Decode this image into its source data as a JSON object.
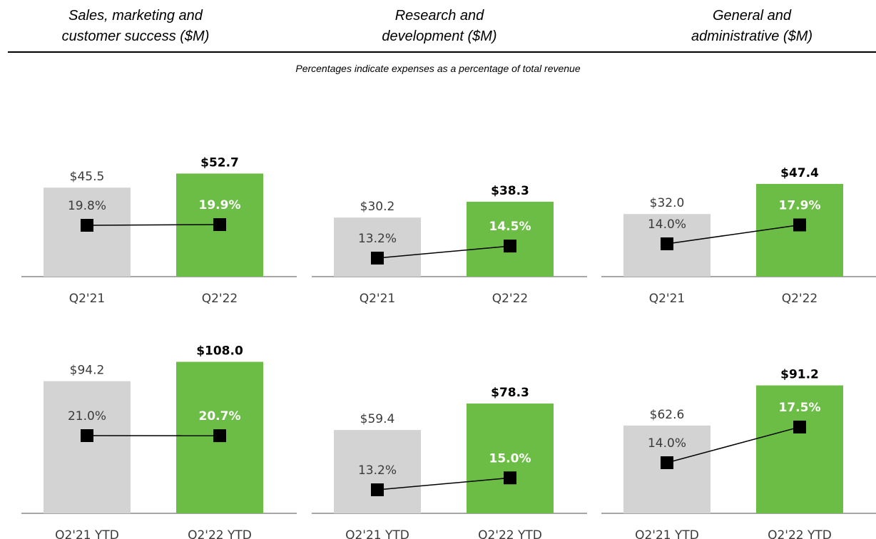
{
  "header": {
    "columns": [
      {
        "line1": "Sales, marketing and",
        "line2": "customer success ($M)"
      },
      {
        "line1": "Research and",
        "line2": "development ($M)"
      },
      {
        "line1": "General and",
        "line2": "administrative ($M)"
      }
    ],
    "note": "Percentages indicate expenses as a percentage of total revenue"
  },
  "colors": {
    "prior": "#d3d3d3",
    "current": "#6cbd45",
    "marker": "#000000",
    "axis": "#a6a6a6"
  },
  "chart_data": [
    {
      "type": "bar",
      "group": "Sales, marketing and customer success ($M)",
      "period": "quarter",
      "categories": [
        "Q2'21",
        "Q2'22"
      ],
      "values": [
        45.5,
        52.7
      ],
      "value_labels": [
        "$45.5",
        "$52.7"
      ],
      "pct": [
        19.8,
        19.9
      ],
      "pct_labels": [
        "19.8%",
        "19.9%"
      ]
    },
    {
      "type": "bar",
      "group": "Research and development ($M)",
      "period": "quarter",
      "categories": [
        "Q2'21",
        "Q2'22"
      ],
      "values": [
        30.2,
        38.3
      ],
      "value_labels": [
        "$30.2",
        "$38.3"
      ],
      "pct": [
        13.2,
        14.5
      ],
      "pct_labels": [
        "13.2%",
        "14.5%"
      ]
    },
    {
      "type": "bar",
      "group": "General and administrative ($M)",
      "period": "quarter",
      "categories": [
        "Q2'21",
        "Q2'22"
      ],
      "values": [
        32.0,
        47.4
      ],
      "value_labels": [
        "$32.0",
        "$47.4"
      ],
      "pct": [
        14.0,
        17.9
      ],
      "pct_labels": [
        "14.0%",
        "17.9%"
      ]
    },
    {
      "type": "bar",
      "group": "Sales, marketing and customer success ($M)",
      "period": "ytd",
      "categories": [
        "Q2'21 YTD",
        "Q2'22 YTD"
      ],
      "values": [
        94.2,
        108.0
      ],
      "value_labels": [
        "$94.2",
        "$108.0"
      ],
      "pct": [
        21.0,
        20.7
      ],
      "pct_labels": [
        "21.0%",
        "20.7%"
      ]
    },
    {
      "type": "bar",
      "group": "Research and development ($M)",
      "period": "ytd",
      "categories": [
        "Q2'21 YTD",
        "Q2'22 YTD"
      ],
      "values": [
        59.4,
        78.3
      ],
      "value_labels": [
        "$59.4",
        "$78.3"
      ],
      "pct": [
        13.2,
        15.0
      ],
      "pct_labels": [
        "13.2%",
        "15.0%"
      ]
    },
    {
      "type": "bar",
      "group": "General and administrative ($M)",
      "period": "ytd",
      "categories": [
        "Q2'21 YTD",
        "Q2'22 YTD"
      ],
      "values": [
        62.6,
        91.2
      ],
      "value_labels": [
        "$62.6",
        "$91.2"
      ],
      "pct": [
        14.0,
        17.5
      ],
      "pct_labels": [
        "14.0%",
        "17.5%"
      ]
    }
  ]
}
